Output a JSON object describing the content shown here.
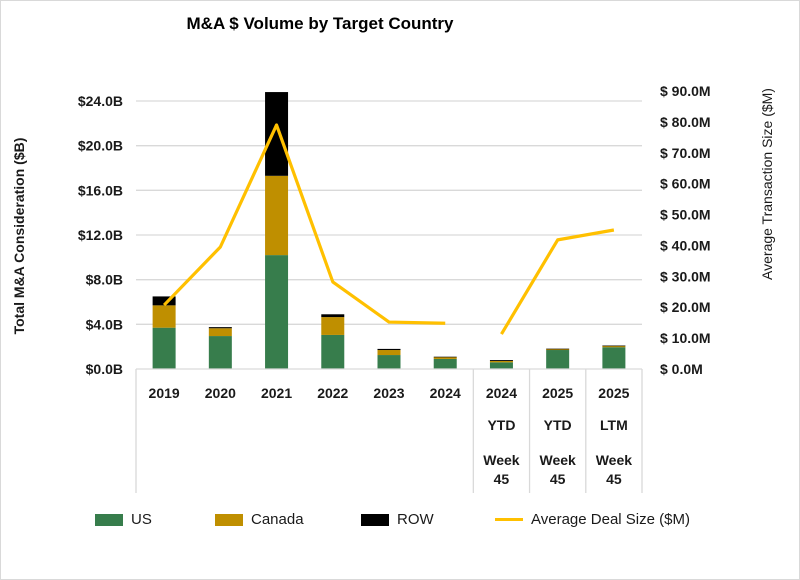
{
  "chart_data": {
    "type": "bar",
    "subtype": "stacked-bar-with-line-secondary-axis",
    "title": "M&A $ Volume by Target Country",
    "categories": [
      [
        "2019"
      ],
      [
        "2020"
      ],
      [
        "2021"
      ],
      [
        "2022"
      ],
      [
        "2023"
      ],
      [
        "2024"
      ],
      [
        "2024",
        "YTD",
        "Week",
        "45"
      ],
      [
        "2025",
        "YTD",
        "Week",
        "45"
      ],
      [
        "2025",
        "LTM",
        "Week",
        "45"
      ]
    ],
    "series": [
      {
        "name": "US",
        "type": "bar",
        "axis": "left",
        "color": "#377d4c",
        "values": [
          3.7,
          2.95,
          10.2,
          3.05,
          1.25,
          0.9,
          0.6,
          1.7,
          1.95
        ]
      },
      {
        "name": "Canada",
        "type": "bar",
        "axis": "left",
        "color": "#bf8f00",
        "values": [
          2.0,
          0.7,
          7.1,
          1.6,
          0.45,
          0.17,
          0.12,
          0.1,
          0.13
        ]
      },
      {
        "name": "ROW",
        "type": "bar",
        "axis": "left",
        "color": "#000000",
        "values": [
          0.8,
          0.1,
          7.5,
          0.25,
          0.1,
          0.03,
          0.08,
          0.02,
          0.02
        ]
      },
      {
        "name": "Average Deal Size ($M)",
        "type": "line",
        "axis": "right",
        "color": "#ffc000",
        "values": [
          20.7,
          39.5,
          79.0,
          28.2,
          15.2,
          14.8,
          11.3,
          41.8,
          45.0
        ],
        "segments": [
          [
            0,
            5
          ],
          [
            6,
            8
          ]
        ]
      }
    ],
    "ylabel": "Total M&A Consideration ($B)",
    "y2label": "Average Transaction Size ($M)",
    "ylim": [
      0,
      24
    ],
    "y2lim": [
      0,
      90
    ],
    "yticks": [
      "$0.0B",
      "$4.0B",
      "$8.0B",
      "$12.0B",
      "$16.0B",
      "$20.0B",
      "$24.0B"
    ],
    "ytick_values": [
      0,
      4,
      8,
      12,
      16,
      20,
      24
    ],
    "y2ticks": [
      "$ 0.0M",
      "$ 10.0M",
      "$ 20.0M",
      "$ 30.0M",
      "$ 40.0M",
      "$ 50.0M",
      "$ 60.0M",
      "$ 70.0M",
      "$ 80.0M",
      "$ 90.0M"
    ],
    "y2tick_values": [
      0,
      10,
      20,
      30,
      40,
      50,
      60,
      70,
      80,
      90
    ],
    "grid": true,
    "legend_position": "bottom",
    "legend": [
      "US",
      "Canada",
      "ROW",
      "Average Deal Size ($M)"
    ]
  },
  "legend": {
    "us": "US",
    "canada": "Canada",
    "row": "ROW",
    "avg": "Average Deal Size ($M)"
  },
  "colors": {
    "us": "#377d4c",
    "canada": "#bf8f00",
    "row": "#000000",
    "avg": "#ffc000",
    "grid": "#d9d9d9"
  }
}
